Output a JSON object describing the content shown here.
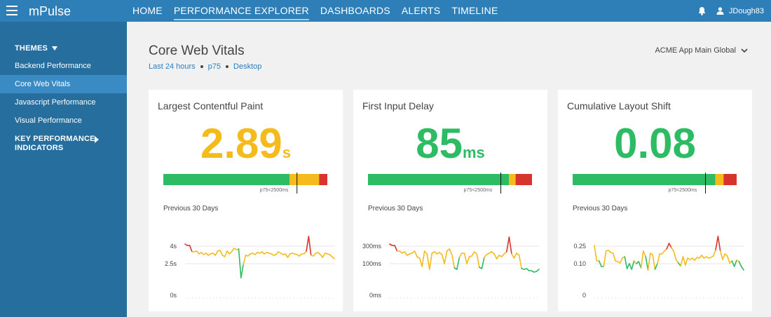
{
  "topbar": {
    "brand": "mPulse",
    "nav": [
      "HOME",
      "PERFORMANCE EXPLORER",
      "DASHBOARDS",
      "ALERTS",
      "TIMELINE"
    ],
    "active_nav": 1,
    "user": "JDough83",
    "color": "#2e7fb8"
  },
  "sidebar": {
    "themes_label": "THEMES",
    "items": [
      "Backend Performance",
      "Core Web Vitals",
      "Javascript Performance",
      "Visual Performance"
    ],
    "active_item": 1,
    "kpi_line1": "KEY PERFORMANCE",
    "kpi_line2": "INDICATORS",
    "color": "#256e9e"
  },
  "page": {
    "title": "Core Web Vitals",
    "filter_range": "Last 24 hours",
    "filter_percentile": "p75",
    "filter_device": "Desktop",
    "app": "ACME App Main Global"
  },
  "colors": {
    "good": "#2dbb64",
    "warn": "#f5bb1d",
    "bad": "#d7342e"
  },
  "cards": [
    {
      "title": "Largest Contentful Paint",
      "value": "2.89",
      "unit": "s",
      "value_color": "#f5bb1d",
      "threshold_label": "p75<2500ms",
      "bar_fractions": [
        0.77,
        0.18,
        0.05
      ],
      "marker_fraction": 0.815,
      "prev_label": "Previous 30 Days",
      "y_ticks": [
        "4s",
        "2.5s",
        "0s"
      ]
    },
    {
      "title": "First Input Delay",
      "value": "85",
      "unit": "ms",
      "value_color": "#2dbb64",
      "threshold_label": "p75<2500ms",
      "bar_fractions": [
        0.86,
        0.04,
        0.1
      ],
      "marker_fraction": 0.81,
      "prev_label": "Previous 30 Days",
      "y_ticks": [
        "300ms",
        "100ms",
        "0ms"
      ]
    },
    {
      "title": "Cumulative Layout Shift",
      "value": "0.08",
      "unit": "",
      "value_color": "#2dbb64",
      "threshold_label": "p75<2500ms",
      "bar_fractions": [
        0.87,
        0.05,
        0.08
      ],
      "marker_fraction": 0.81,
      "prev_label": "Previous 30 Days",
      "y_ticks": [
        "0.25",
        "0.10",
        "0"
      ]
    }
  ]
}
